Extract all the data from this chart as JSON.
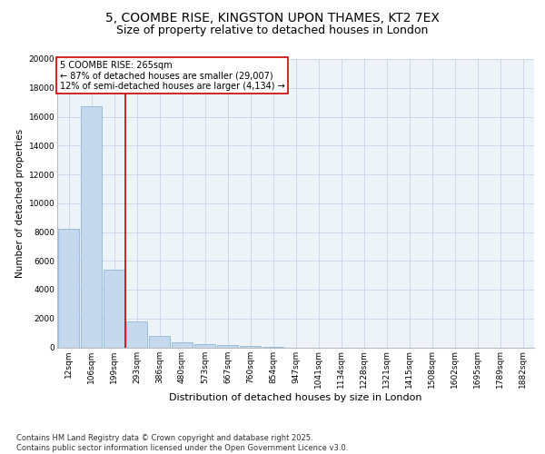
{
  "title": "5, COOMBE RISE, KINGSTON UPON THAMES, KT2 7EX",
  "subtitle": "Size of property relative to detached houses in London",
  "xlabel": "Distribution of detached houses by size in London",
  "ylabel": "Number of detached properties",
  "bar_labels": [
    "12sqm",
    "106sqm",
    "199sqm",
    "293sqm",
    "386sqm",
    "480sqm",
    "573sqm",
    "667sqm",
    "760sqm",
    "854sqm",
    "947sqm",
    "1041sqm",
    "1134sqm",
    "1228sqm",
    "1321sqm",
    "1415sqm",
    "1508sqm",
    "1602sqm",
    "1695sqm",
    "1789sqm",
    "1882sqm"
  ],
  "bar_values": [
    8200,
    16700,
    5400,
    1800,
    800,
    350,
    200,
    150,
    100,
    50,
    0,
    0,
    0,
    0,
    0,
    0,
    0,
    0,
    0,
    0,
    0
  ],
  "bar_color": "#c5d8ee",
  "bar_edgecolor": "#7bafd4",
  "vline_x_index": 2,
  "vline_color": "#cc0000",
  "annotation_text": "5 COOMBE RISE: 265sqm\n← 87% of detached houses are smaller (29,007)\n12% of semi-detached houses are larger (4,134) →",
  "annotation_box_color": "#cc0000",
  "ylim": [
    0,
    20000
  ],
  "yticks": [
    0,
    2000,
    4000,
    6000,
    8000,
    10000,
    12000,
    14000,
    16000,
    18000,
    20000
  ],
  "grid_color": "#c5d5e8",
  "background_color": "#eef3f8",
  "footnote": "Contains HM Land Registry data © Crown copyright and database right 2025.\nContains public sector information licensed under the Open Government Licence v3.0.",
  "title_fontsize": 10,
  "subtitle_fontsize": 9,
  "xlabel_fontsize": 8,
  "ylabel_fontsize": 7.5,
  "tick_fontsize": 6.5,
  "annot_fontsize": 7,
  "footnote_fontsize": 6
}
